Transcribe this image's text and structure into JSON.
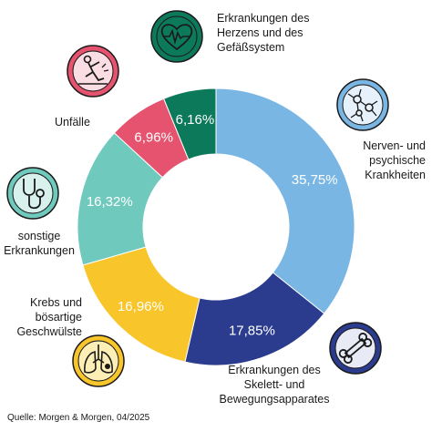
{
  "chart_data": {
    "type": "pie",
    "categories": [
      "Nerven- und psychische Krankheiten",
      "Erkrankungen des Skelett- und Bewegungsapparates",
      "Krebs und bösartige Geschwülste",
      "sonstige Erkrankungen",
      "Unfälle",
      "Erkrankungen des Herzens und des Gefäßsystem"
    ],
    "values": [
      35.75,
      17.85,
      16.96,
      16.32,
      6.96,
      6.16
    ],
    "value_labels": [
      "35,75%",
      "17,85%",
      "16,96%",
      "16,32%",
      "6,96%",
      "6,16%"
    ],
    "colors": [
      "#7ab6e4",
      "#2b3c8e",
      "#f8c52b",
      "#6fcabd",
      "#e5536f",
      "#0c7a5a"
    ],
    "legend": "none"
  },
  "labels": {
    "nerven": "Nerven- und psychische Krankheiten",
    "skelett": "Erkrankungen des Skelett- und Bewegungsapparates",
    "krebs": "Krebs und bösartige Geschwülste",
    "sonstige": "sonstige Erkrankungen",
    "unfaelle": "Unfälle",
    "herz": "Erkrankungen des Herzens und des Gefäßsystem"
  },
  "icons": {
    "herz": "heart-ecg-icon",
    "nerven": "neurons-icon",
    "skelett": "bone-icon",
    "krebs": "lungs-icon",
    "sonstige": "stethoscope-icon",
    "unfaelle": "falling-person-icon"
  },
  "source": "Quelle: Morgen & Morgen, 04/2025"
}
